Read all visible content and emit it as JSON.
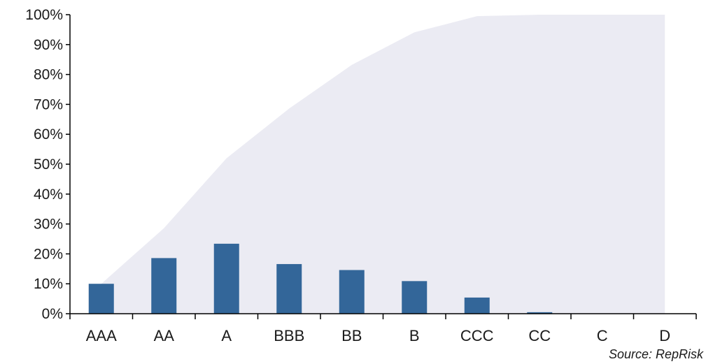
{
  "chart_data": {
    "type": "bar",
    "title": "",
    "xlabel": "",
    "ylabel": "",
    "categories": [
      "AAA",
      "AA",
      "A",
      "BBB",
      "BB",
      "B",
      "CCC",
      "CC",
      "C",
      "D"
    ],
    "series": [
      {
        "kind": "bar",
        "values": [
          10.0,
          18.6,
          23.4,
          16.6,
          14.6,
          10.9,
          5.4,
          0.5,
          0.0,
          0.0
        ],
        "color": "#336699"
      },
      {
        "kind": "area",
        "values": [
          10.0,
          28.6,
          52.0,
          68.6,
          83.2,
          94.1,
          99.5,
          100.0,
          100.0,
          100.0
        ],
        "color": "#ebebf3"
      }
    ],
    "ylim": [
      0,
      100
    ],
    "yticks": [
      0,
      10,
      20,
      30,
      40,
      50,
      60,
      70,
      80,
      90,
      100
    ],
    "ytick_labels": [
      "0%",
      "10%",
      "20%",
      "30%",
      "40%",
      "50%",
      "60%",
      "70%",
      "80%",
      "90%",
      "100%"
    ],
    "grid": false,
    "legend": "none",
    "source": "Source: RepRisk",
    "axis_color": "#000000"
  }
}
